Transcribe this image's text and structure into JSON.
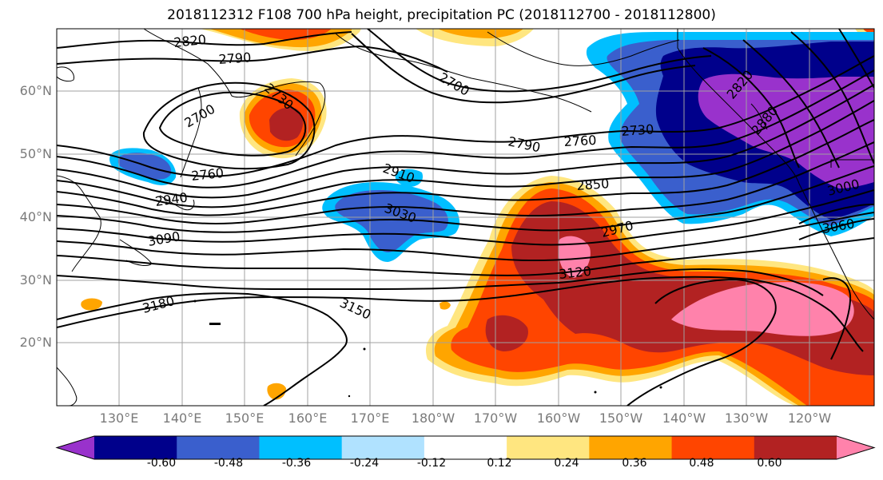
{
  "title": "2018112312 F108 700 hPa height, precipitation PC (2018112700 - 2018112800)",
  "lat_labels": [
    "60°N",
    "50°N",
    "40°N",
    "30°N",
    "20°N"
  ],
  "lon_labels": [
    "130°E",
    "140°E",
    "150°E",
    "160°E",
    "170°E",
    "180°W",
    "170°W",
    "160°W",
    "150°W",
    "140°W",
    "130°W",
    "120°W"
  ],
  "contour_labels": [
    "2820",
    "2790",
    "2730",
    "2700",
    "2700",
    "2760",
    "2940",
    "3090",
    "3180",
    "3150",
    "2910",
    "3030",
    "2790",
    "2760",
    "2730",
    "2850",
    "2970",
    "3120",
    "2880",
    "2820",
    "3000",
    "3060"
  ],
  "colorbar": {
    "ticks": [
      "-0.60",
      "-0.48",
      "-0.36",
      "-0.24",
      "-0.12",
      "0.12",
      "0.24",
      "0.36",
      "0.48",
      "0.60"
    ],
    "colors": [
      "#9932cc",
      "#00008b",
      "#3a5fcd",
      "#00bfff",
      "#b0e2ff",
      "#ffffff",
      "#ffe680",
      "#ffa500",
      "#ff4500",
      "#b22222",
      "#ff82ab"
    ]
  },
  "colors": {
    "coast": "#000000",
    "grid": "#a0a0a0",
    "contour": "#000000"
  }
}
